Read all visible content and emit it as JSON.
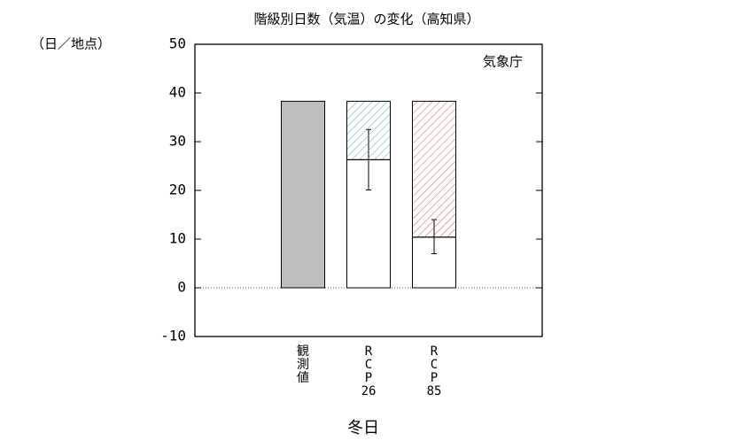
{
  "chart_data": {
    "type": "bar",
    "title": "階級別日数（気温）の変化（高知県）",
    "y_label": "（日／地点）",
    "annotation": "気象庁",
    "x_label": "冬日",
    "categories": [
      [
        "観",
        "測",
        "値"
      ],
      [
        "R",
        "C",
        "P",
        "26"
      ],
      [
        "R",
        "C",
        "P",
        "85"
      ]
    ],
    "series": [
      {
        "values": [
          38.3,
          null,
          null
        ],
        "color": "#bebebe"
      },
      {
        "values": [
          null,
          26.3,
          10.4
        ],
        "color": "#ffffff",
        "error_range": [
          null,
          [
            20.1,
            32.5
          ],
          [
            7.0,
            14.0
          ]
        ]
      },
      {
        "values": [
          null,
          12.0,
          27.9
        ],
        "color": [
          "#000000",
          "#5aa0c8",
          "#d9534f"
        ],
        "hatch": true
      }
    ],
    "ylim": [
      -10,
      50
    ],
    "yticks": [
      50,
      40,
      30,
      20,
      10,
      0,
      -10
    ]
  }
}
